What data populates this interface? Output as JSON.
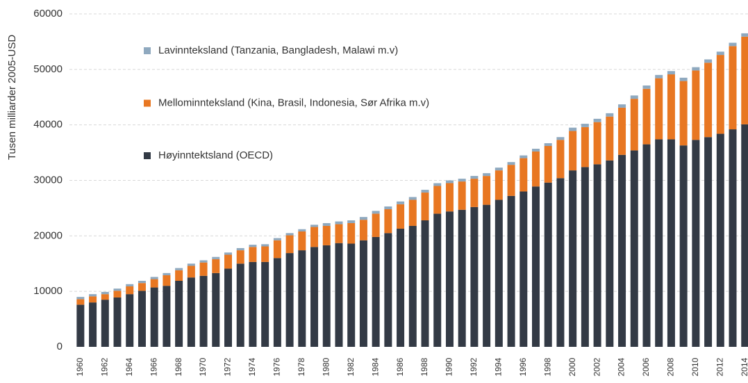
{
  "chart_data": {
    "type": "stacked_bar",
    "y_label": "Tusen milliarder 2005-USD",
    "categories": [
      "1960",
      null,
      "1962",
      null,
      "1964",
      null,
      "1966",
      null,
      "1968",
      null,
      "1970",
      null,
      "1972",
      null,
      "1974",
      null,
      "1976",
      null,
      "1978",
      null,
      "1980",
      null,
      "1982",
      null,
      "1984",
      null,
      "1986",
      null,
      "1988",
      null,
      "1990",
      null,
      "1992",
      null,
      "1994",
      null,
      "1996",
      null,
      "1998",
      null,
      "2000",
      null,
      "2002",
      null,
      "2004",
      null,
      "2006",
      null,
      "2008",
      null,
      "2010",
      null,
      "2012",
      null,
      "2014"
    ],
    "series": [
      {
        "name": "Høyinntektsland (OECD)",
        "color": "#333a45",
        "values": [
          7600,
          8000,
          8500,
          8900,
          9500,
          10100,
          10700,
          11000,
          11900,
          12500,
          12800,
          13300,
          14100,
          15000,
          15300,
          15300,
          16000,
          16900,
          17400,
          18000,
          18300,
          18700,
          18600,
          19200,
          19800,
          20500,
          21300,
          21800,
          22800,
          24000,
          24400,
          24700,
          25200,
          25600,
          26500,
          27200,
          28000,
          28900,
          29600,
          30400,
          31800,
          32400,
          32900,
          33600,
          34600,
          35400,
          36500,
          37400,
          37400,
          36300,
          37300,
          37800,
          38400,
          39200,
          40100
        ]
      },
      {
        "name": "Mellominnteksland (Kina, Brasil, Indonesia, Sør Afrika m.v)",
        "color": "#e87722",
        "values": [
          1000,
          1100,
          1000,
          1200,
          1400,
          1400,
          1500,
          1900,
          1900,
          2100,
          2400,
          2500,
          2500,
          2400,
          2700,
          2800,
          3200,
          3200,
          3400,
          3600,
          3500,
          3400,
          3700,
          3700,
          4200,
          4300,
          4400,
          4700,
          5000,
          5000,
          5100,
          5100,
          5100,
          5200,
          5300,
          5600,
          6000,
          6300,
          6600,
          6900,
          7100,
          7200,
          7600,
          7900,
          8500,
          9300,
          10000,
          11000,
          11700,
          11600,
          12500,
          13400,
          14200,
          15000,
          15800
        ]
      },
      {
        "name": "Lavinnteksland (Tanzania, Bangladesh, Malawi m.v)",
        "color": "#8fa9bf",
        "values": [
          400,
          400,
          400,
          400,
          400,
          400,
          400,
          400,
          400,
          400,
          400,
          400,
          400,
          400,
          400,
          400,
          400,
          400,
          400,
          400,
          500,
          500,
          500,
          500,
          500,
          500,
          500,
          500,
          500,
          500,
          500,
          500,
          500,
          500,
          500,
          500,
          500,
          500,
          500,
          500,
          600,
          600,
          600,
          600,
          600,
          600,
          600,
          600,
          600,
          600,
          600,
          600,
          600,
          600,
          600
        ]
      }
    ],
    "ylim": [
      0,
      60000
    ],
    "yticks": [
      0,
      10000,
      20000,
      30000,
      40000,
      50000,
      60000
    ],
    "grid": true
  }
}
